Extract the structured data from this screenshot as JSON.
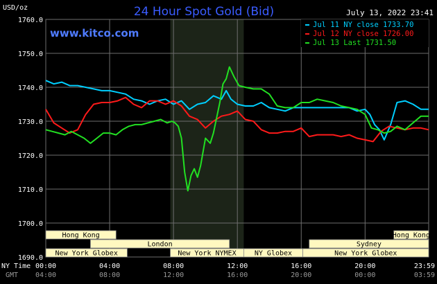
{
  "header": {
    "title": "24 Hour Spot Gold (Bid)",
    "unit": "USD/oz",
    "datetime": "July 13, 2022 23:41",
    "website": "www.kitco.com"
  },
  "colors": {
    "background": "#000000",
    "grid": "#6e6e6e",
    "title": "#3a5cff",
    "website": "#4f7bff",
    "text": "#ffffff",
    "muted": "#9a9a9a",
    "session_fill": "#fff8c0",
    "session_text": "#000000",
    "highlight_band": "#1c2418",
    "series_jul11": "#00cfff",
    "series_jul12": "#ff1a1a",
    "series_jul13": "#22e022"
  },
  "axis_labels": {
    "ny_time": "NY Time",
    "gmt": "GMT"
  },
  "sessions": [
    {
      "label": "Hong Kong",
      "start": 0,
      "end": 4.4,
      "row": 0
    },
    {
      "label": "Hong Kong",
      "start": 21.8,
      "end": 25.5,
      "row": 0
    },
    {
      "label": "London",
      "start": 2.8,
      "end": 11.5,
      "row": 1
    },
    {
      "label": "Sydney",
      "start": 16.5,
      "end": 25.5,
      "row": 1
    },
    {
      "label": "New York Globex",
      "start": 0,
      "end": 5.1,
      "row": 2
    },
    {
      "label": "New York NYMEX",
      "start": 7.8,
      "end": 12.4,
      "row": 2
    },
    {
      "label": "NY Globex",
      "start": 12.4,
      "end": 16.1,
      "row": 2
    },
    {
      "label": "New York Globex",
      "start": 16.1,
      "end": 25.5,
      "row": 2
    }
  ],
  "chart_data": {
    "type": "line",
    "title": "24 Hour Spot Gold (Bid)",
    "ylabel": "USD/oz",
    "ylim": [
      1690,
      1760
    ],
    "xlim": [
      0,
      23.983
    ],
    "grid": true,
    "legend_position": "top-right",
    "yticks": [
      "1690.0",
      "1700.0",
      "1710.0",
      "1720.0",
      "1730.0",
      "1740.0",
      "1750.0",
      "1760.0"
    ],
    "xticks_ny": [
      "00:00",
      "04:00",
      "08:00",
      "12:00",
      "16:00",
      "20:00",
      "23:59"
    ],
    "xticks_gmt": [
      "04:00",
      "08:00",
      "12:00",
      "16:00",
      "20:00",
      "00:00",
      "03:59"
    ],
    "xtick_hours": [
      0,
      4,
      8,
      12,
      16,
      20,
      23.983
    ],
    "highlight": {
      "start": 7.8,
      "end": 12.4
    },
    "series": [
      {
        "name": "Jul 11 NY close 1733.70",
        "color": "#00cfff",
        "x": [
          0,
          0.5,
          1.0,
          1.5,
          2.0,
          2.5,
          3.0,
          3.5,
          4.0,
          4.5,
          5.0,
          5.5,
          6.0,
          6.5,
          7.0,
          7.5,
          8.0,
          8.5,
          9.0,
          9.5,
          10.0,
          10.5,
          11.0,
          11.3,
          11.6,
          12.0,
          12.5,
          13.0,
          13.5,
          14.0,
          14.5,
          15.0,
          15.5,
          16.0,
          16.5,
          17.0,
          17.5,
          18.0,
          18.5,
          19.0,
          19.5,
          20.0,
          20.3,
          20.6,
          20.9,
          21.2,
          21.6,
          22.0,
          22.5,
          23.0,
          23.5,
          23.983
        ],
        "values": [
          1742,
          1741,
          1741.5,
          1740.5,
          1740.5,
          1740,
          1739.5,
          1739,
          1739,
          1738.5,
          1738,
          1736.5,
          1736,
          1735,
          1736,
          1736.5,
          1735,
          1736,
          1733.5,
          1735,
          1735.5,
          1737.5,
          1736.5,
          1739,
          1736.5,
          1735,
          1734.5,
          1734.5,
          1735.5,
          1734,
          1733.5,
          1733,
          1734,
          1734,
          1734,
          1734,
          1734,
          1734,
          1734,
          1734,
          1733,
          1733.5,
          1732,
          1729,
          1727.5,
          1724.5,
          1729,
          1735.5,
          1736,
          1735,
          1733.5,
          1733.5
        ]
      },
      {
        "name": "Jul 12 NY close 1726.00",
        "color": "#ff1a1a",
        "x": [
          0,
          0.5,
          1.0,
          1.5,
          2.0,
          2.5,
          3.0,
          3.5,
          4.0,
          4.5,
          5.0,
          5.5,
          6.0,
          6.5,
          7.0,
          7.5,
          8.0,
          8.5,
          9.0,
          9.5,
          10.0,
          10.5,
          11.0,
          11.5,
          12.0,
          12.5,
          13.0,
          13.5,
          14.0,
          14.5,
          15.0,
          15.5,
          16.0,
          16.5,
          17.0,
          17.5,
          18.0,
          18.5,
          19.0,
          19.5,
          20.0,
          20.5,
          21.0,
          21.5,
          22.0,
          22.5,
          23.0,
          23.5,
          23.983
        ],
        "values": [
          1733.5,
          1729.5,
          1728,
          1726.5,
          1727.5,
          1732,
          1735,
          1735.5,
          1735.5,
          1736,
          1737,
          1735,
          1734,
          1736,
          1736,
          1735,
          1736,
          1734.5,
          1731.5,
          1730.5,
          1728,
          1730,
          1731.5,
          1732,
          1733,
          1730.5,
          1730,
          1727.5,
          1726.5,
          1726.5,
          1727,
          1727,
          1728,
          1725.5,
          1726,
          1726,
          1726,
          1725.5,
          1726,
          1725,
          1724.5,
          1724,
          1727,
          1728.5,
          1728,
          1727.5,
          1728,
          1728,
          1727.5
        ]
      },
      {
        "name": "Jul 13 Last 1731.50",
        "color": "#22e022",
        "x": [
          0,
          0.4,
          0.8,
          1.2,
          1.6,
          2.0,
          2.4,
          2.8,
          3.2,
          3.6,
          4.0,
          4.4,
          4.8,
          5.2,
          5.6,
          6.0,
          6.4,
          6.8,
          7.2,
          7.6,
          7.9,
          8.1,
          8.3,
          8.5,
          8.7,
          8.9,
          9.1,
          9.3,
          9.5,
          9.7,
          10.0,
          10.3,
          10.5,
          10.7,
          10.9,
          11.1,
          11.3,
          11.5,
          11.8,
          12.1,
          12.5,
          13.0,
          13.5,
          14.0,
          14.5,
          15.0,
          15.5,
          16.0,
          16.5,
          17.0,
          17.5,
          18.0,
          18.5,
          19.0,
          19.5,
          20.0,
          20.4,
          20.8,
          21.2,
          21.6,
          22.0,
          22.5,
          23.0,
          23.5,
          23.983
        ],
        "values": [
          1727.5,
          1727,
          1726.5,
          1726,
          1727,
          1726,
          1725,
          1723.5,
          1725,
          1726.5,
          1726.5,
          1726,
          1727.5,
          1728.5,
          1729,
          1729,
          1729.5,
          1730,
          1730.5,
          1729.5,
          1730,
          1729.5,
          1728.5,
          1725,
          1715,
          1709.5,
          1714,
          1716,
          1713.5,
          1717,
          1725,
          1723.5,
          1726.5,
          1731,
          1735.5,
          1741,
          1742.5,
          1746,
          1743,
          1740.5,
          1740,
          1739.5,
          1739.5,
          1738,
          1734.5,
          1734,
          1734,
          1735.5,
          1735.5,
          1736.5,
          1736,
          1735.5,
          1734.5,
          1734,
          1733.5,
          1732,
          1728,
          1727.5,
          1726.5,
          1727,
          1728.5,
          1727.5,
          1729.5,
          1731.5,
          1731.5
        ]
      }
    ]
  }
}
